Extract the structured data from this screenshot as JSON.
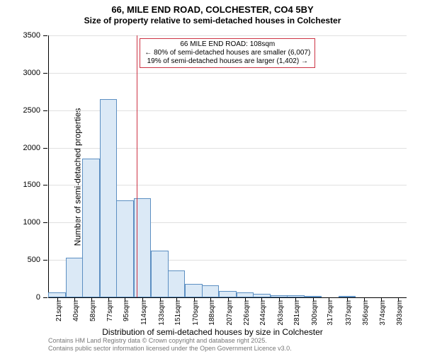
{
  "title_line1": "66, MILE END ROAD, COLCHESTER, CO4 5BY",
  "title_line2": "Size of property relative to semi-detached houses in Colchester",
  "ylabel": "Number of semi-detached properties",
  "xlabel": "Distribution of semi-detached houses by size in Colchester",
  "annotation": {
    "line1": "66 MILE END ROAD: 108sqm",
    "line2": "← 80% of semi-detached houses are smaller (6,007)",
    "line3": "19% of semi-detached houses are larger (1,402) →",
    "marker_value": 108,
    "box_color": "#cc3344"
  },
  "chart": {
    "type": "histogram",
    "xlim": [
      12,
      402
    ],
    "ylim": [
      0,
      3500
    ],
    "ytick_step": 500,
    "bar_fill": "#dbe9f6",
    "bar_border": "#5c8fc2",
    "grid_color": "#e0e0e0",
    "background": "#ffffff",
    "categories": [
      21,
      40,
      58,
      77,
      95,
      114,
      133,
      151,
      170,
      188,
      207,
      226,
      244,
      263,
      281,
      300,
      317,
      337,
      356,
      374,
      393
    ],
    "values": [
      70,
      530,
      1850,
      2650,
      1300,
      1320,
      620,
      360,
      180,
      160,
      90,
      70,
      50,
      30,
      30,
      10,
      0,
      10,
      0,
      0,
      0
    ],
    "bar_width_unit": 19
  },
  "footer_line1": "Contains HM Land Registry data © Crown copyright and database right 2025.",
  "footer_line2": "Contains public sector information licensed under the Open Government Licence v3.0."
}
